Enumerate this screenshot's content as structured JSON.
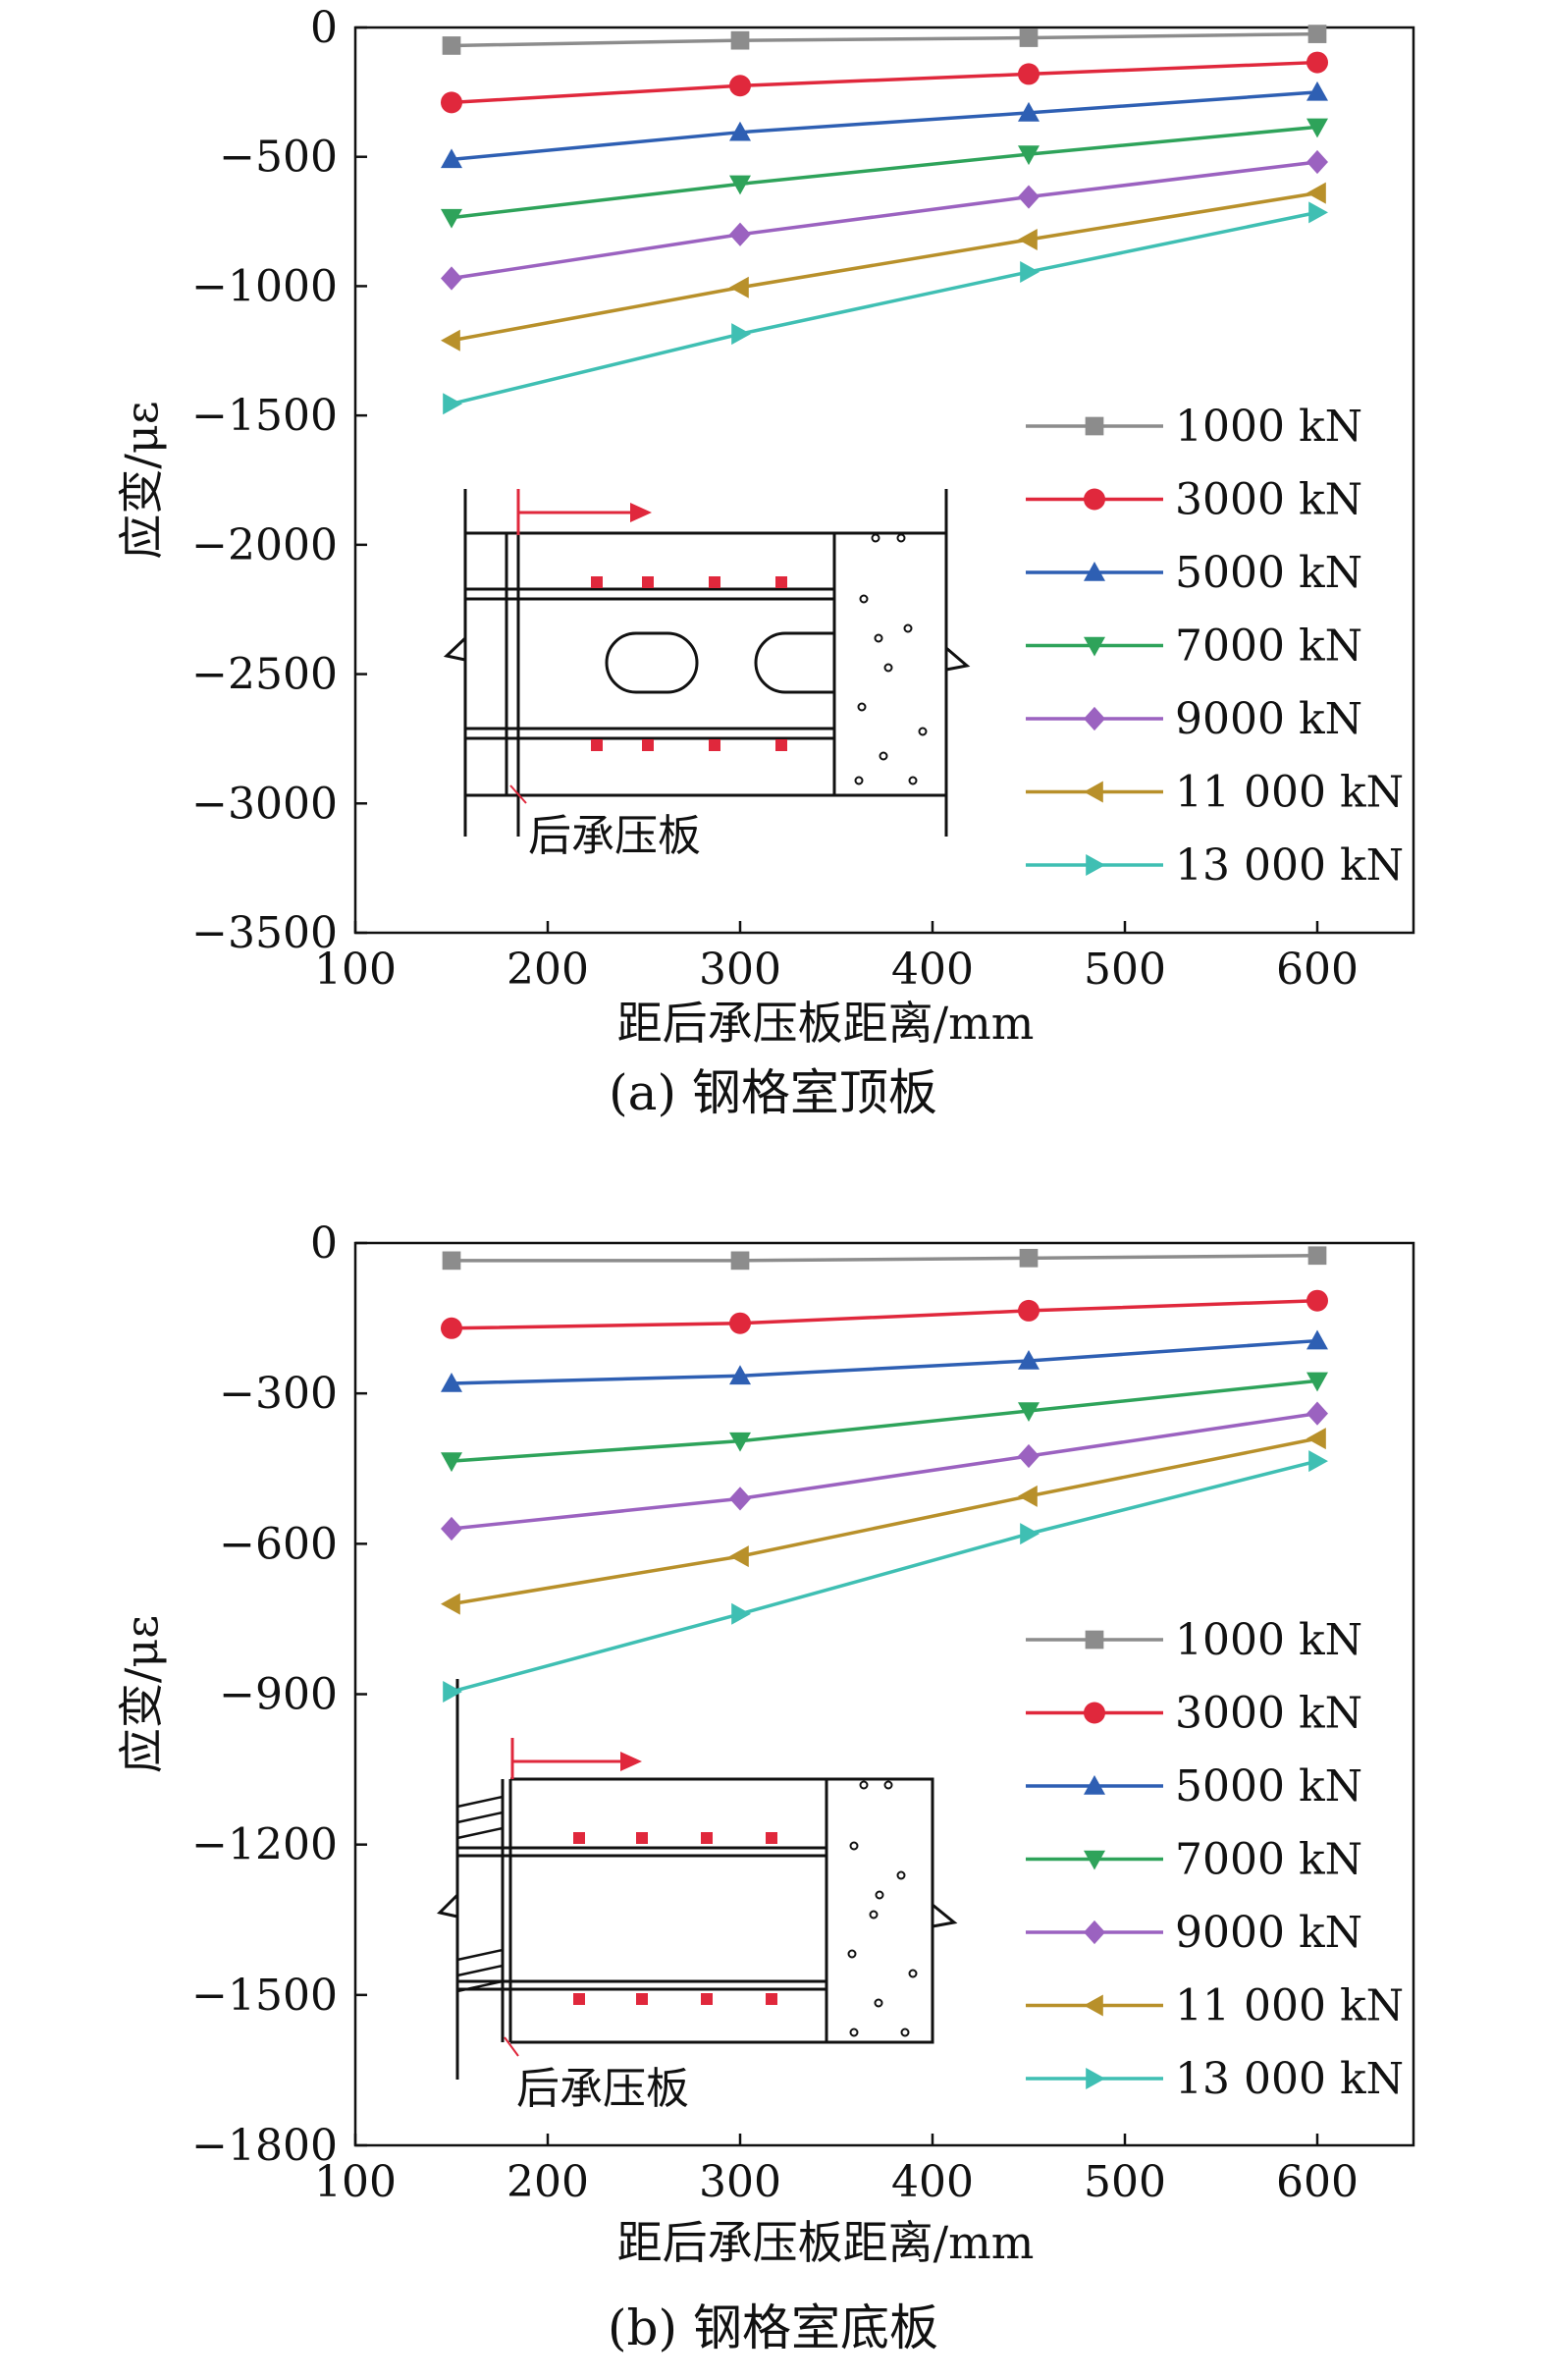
{
  "chart_data": [
    {
      "type": "line",
      "caption": "(a) 钢格室顶板",
      "xlabel": "距后承压板距离/mm",
      "ylabel": "应变/με",
      "xlim": [
        100,
        650
      ],
      "ylim": [
        -3500,
        0
      ],
      "xticks": [
        100,
        200,
        300,
        400,
        500,
        600
      ],
      "yticks": [
        0,
        -500,
        -1000,
        -1500,
        -2000,
        -2500,
        -3000,
        -3500
      ],
      "ytick_labels": [
        "0",
        "−500",
        "−1000",
        "−1500",
        "−2000",
        "−2500",
        "−3000",
        "−3500"
      ],
      "x": [
        150,
        300,
        450,
        600
      ],
      "legend_position": "right",
      "series": [
        {
          "name": "1000 kN",
          "color": "#8c8c8c",
          "marker": "square",
          "values": [
            -70,
            -50,
            -40,
            -25
          ]
        },
        {
          "name": "3000 kN",
          "color": "#e0283c",
          "marker": "circle",
          "values": [
            -290,
            -225,
            -180,
            -135
          ]
        },
        {
          "name": "5000 kN",
          "color": "#2e5fb3",
          "marker": "triangle-up",
          "values": [
            -510,
            -405,
            -330,
            -250
          ]
        },
        {
          "name": "7000 kN",
          "color": "#2ea35a",
          "marker": "triangle-down",
          "values": [
            -735,
            -605,
            -490,
            -385
          ]
        },
        {
          "name": "9000 kN",
          "color": "#9b62c0",
          "marker": "diamond",
          "values": [
            -970,
            -800,
            -655,
            -520
          ]
        },
        {
          "name": "11 000 kN",
          "color": "#b8902a",
          "marker": "triangle-left",
          "values": [
            -1210,
            -1005,
            -820,
            -640
          ]
        },
        {
          "name": "13 000 kN",
          "color": "#3fbfb3",
          "marker": "triangle-right",
          "values": [
            -1455,
            -1185,
            -945,
            -715
          ]
        }
      ],
      "inset_label": "后承压板"
    },
    {
      "type": "line",
      "caption": "(b) 钢格室底板",
      "xlabel": "距后承压板距离/mm",
      "ylabel": "应变/με",
      "xlim": [
        100,
        650
      ],
      "ylim": [
        -1800,
        0
      ],
      "xticks": [
        100,
        200,
        300,
        400,
        500,
        600
      ],
      "yticks": [
        0,
        -300,
        -600,
        -900,
        -1200,
        -1500,
        -1800
      ],
      "ytick_labels": [
        "0",
        "−300",
        "−600",
        "−900",
        "−1200",
        "−1500",
        "−1800"
      ],
      "x": [
        150,
        300,
        450,
        600
      ],
      "legend_position": "right",
      "series": [
        {
          "name": "1000 kN",
          "color": "#8c8c8c",
          "marker": "square",
          "values": [
            -35,
            -35,
            -30,
            -25
          ]
        },
        {
          "name": "3000 kN",
          "color": "#e0283c",
          "marker": "circle",
          "values": [
            -170,
            -160,
            -135,
            -115
          ]
        },
        {
          "name": "5000 kN",
          "color": "#2e5fb3",
          "marker": "triangle-up",
          "values": [
            -280,
            -265,
            -235,
            -195
          ]
        },
        {
          "name": "7000 kN",
          "color": "#2ea35a",
          "marker": "triangle-down",
          "values": [
            -435,
            -395,
            -335,
            -275
          ]
        },
        {
          "name": "9000 kN",
          "color": "#9b62c0",
          "marker": "diamond",
          "values": [
            -570,
            -510,
            -425,
            -340
          ]
        },
        {
          "name": "11 000 kN",
          "color": "#b8902a",
          "marker": "triangle-left",
          "values": [
            -720,
            -625,
            -505,
            -390
          ]
        },
        {
          "name": "13 000 kN",
          "color": "#3fbfb3",
          "marker": "triangle-right",
          "values": [
            -895,
            -740,
            -580,
            -435
          ]
        }
      ],
      "inset_label": "后承压板"
    }
  ]
}
